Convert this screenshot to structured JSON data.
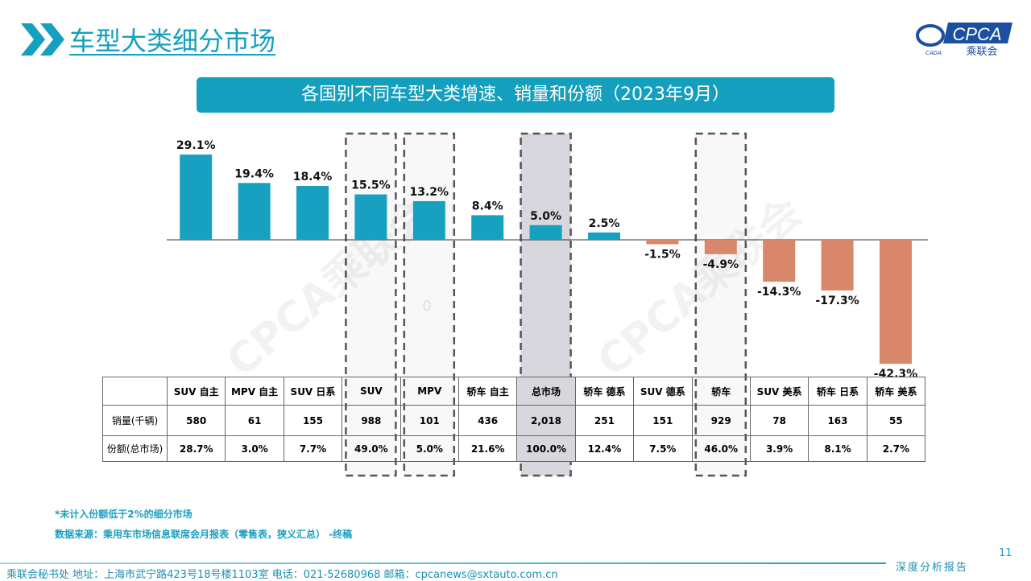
{
  "header": {
    "title": "车型大类细分市场",
    "logo_text": "CPCA",
    "logo_sub": "乘联会",
    "logo_small": "CADA"
  },
  "chart_data": {
    "type": "bar",
    "title": "各国别不同车型大类增速、销量和份额（2023年9月）",
    "categories": [
      "SUV 自主",
      "MPV 自主",
      "SUV 日系",
      "SUV",
      "MPV",
      "轿车 自主",
      "总市场",
      "轿车 德系",
      "SUV 德系",
      "轿车",
      "SUV 美系",
      "轿车 日系",
      "轿车 美系"
    ],
    "values": [
      29.1,
      19.4,
      18.4,
      15.5,
      13.2,
      8.4,
      5.0,
      2.5,
      -1.5,
      -4.9,
      -14.3,
      -17.3,
      -42.3
    ],
    "data_labels": [
      "29.1%",
      "19.4%",
      "18.4%",
      "15.5%",
      "13.2%",
      "8.4%",
      "5.0%",
      "2.5%",
      "-1.5%",
      "-4.9%",
      "-14.3%",
      "-17.3%",
      "-42.3%"
    ],
    "highlighted": [
      "SUV",
      "MPV",
      "总市场",
      "轿车"
    ],
    "colors": {
      "positive": "#17a0c0",
      "negative": "#d9876a",
      "highlight_fill": "#d7d7dd"
    },
    "stray_label": "0",
    "watermark": "CPCA乘联会"
  },
  "table": {
    "rows": [
      {
        "label": "销量(千辆)",
        "values": [
          "580",
          "61",
          "155",
          "988",
          "101",
          "436",
          "2,018",
          "251",
          "151",
          "929",
          "78",
          "163",
          "55"
        ]
      },
      {
        "label": "份额(总市场)",
        "values": [
          "28.7%",
          "3.0%",
          "7.7%",
          "49.0%",
          "5.0%",
          "21.6%",
          "100.0%",
          "12.4%",
          "7.5%",
          "46.0%",
          "3.9%",
          "8.1%",
          "2.7%"
        ]
      }
    ]
  },
  "notes": {
    "n1": "*未计入份额低于2%的细分市场",
    "n2": "数据来源：乘用车市场信息联席会月报表（零售表，狭义汇总） -终稿"
  },
  "footer": {
    "text": "乘联会秘书处   地址：上海市武宁路423号18号楼1103室  电话：021-52680968   邮箱：cpcanews@sxtauto.com.cn",
    "brand": "深度分析报告",
    "page": "11"
  }
}
